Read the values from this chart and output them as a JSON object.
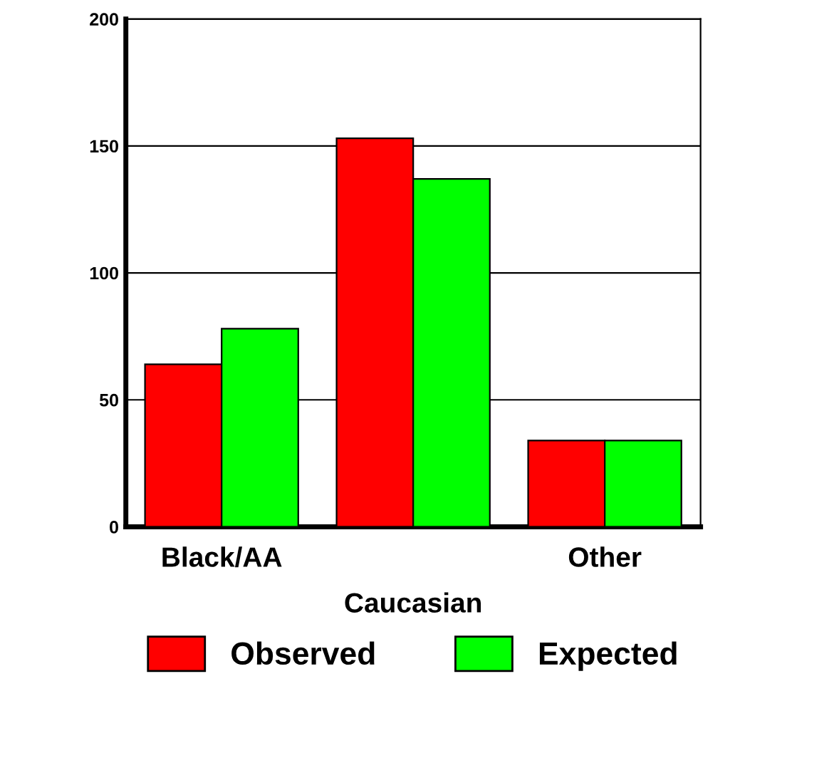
{
  "chart_data": {
    "type": "bar",
    "categories": [
      "Black/AA",
      "Caucasian",
      "Other"
    ],
    "series": [
      {
        "name": "Observed",
        "color": "#ff0000",
        "values": [
          64,
          153,
          34
        ]
      },
      {
        "name": "Expected",
        "color": "#00ff00",
        "values": [
          78,
          137,
          34
        ]
      }
    ],
    "ylim": [
      0,
      200
    ],
    "yticks": [
      0,
      50,
      100,
      150,
      200
    ],
    "grid": "y",
    "legend": "bottom"
  }
}
